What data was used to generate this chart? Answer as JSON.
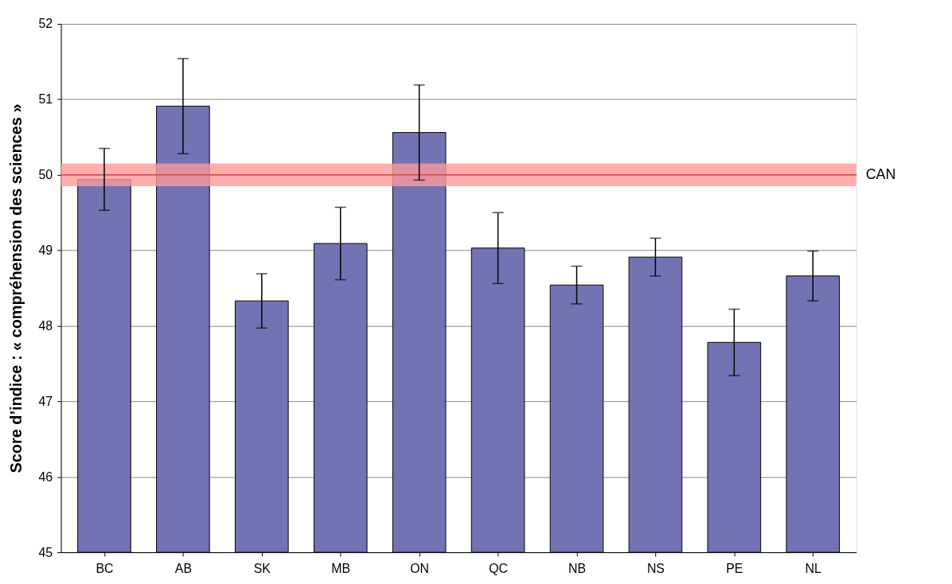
{
  "chart_data": {
    "type": "bar",
    "ylabel": "Score d’indice : « compréhension des sciences »",
    "categories": [
      "BC",
      "AB",
      "SK",
      "MB",
      "ON",
      "QC",
      "NB",
      "NS",
      "PE",
      "NL"
    ],
    "values": [
      49.94,
      50.91,
      48.33,
      49.09,
      50.56,
      49.03,
      48.54,
      48.91,
      47.78,
      48.66
    ],
    "errors": [
      0.41,
      0.63,
      0.36,
      0.48,
      0.63,
      0.47,
      0.25,
      0.25,
      0.44,
      0.33
    ],
    "color": "#7373b4",
    "ylim": [
      45,
      52
    ],
    "yticks": [
      45,
      46,
      47,
      48,
      49,
      50,
      51,
      52
    ],
    "grid": "y",
    "bands": [
      {
        "axis": "y",
        "from": 49.85,
        "to": 50.15,
        "color": "#ff9999"
      }
    ],
    "ref_lines": [
      {
        "axis": "y",
        "value": 50,
        "label": "CAN",
        "color": "#c0504d"
      }
    ]
  }
}
